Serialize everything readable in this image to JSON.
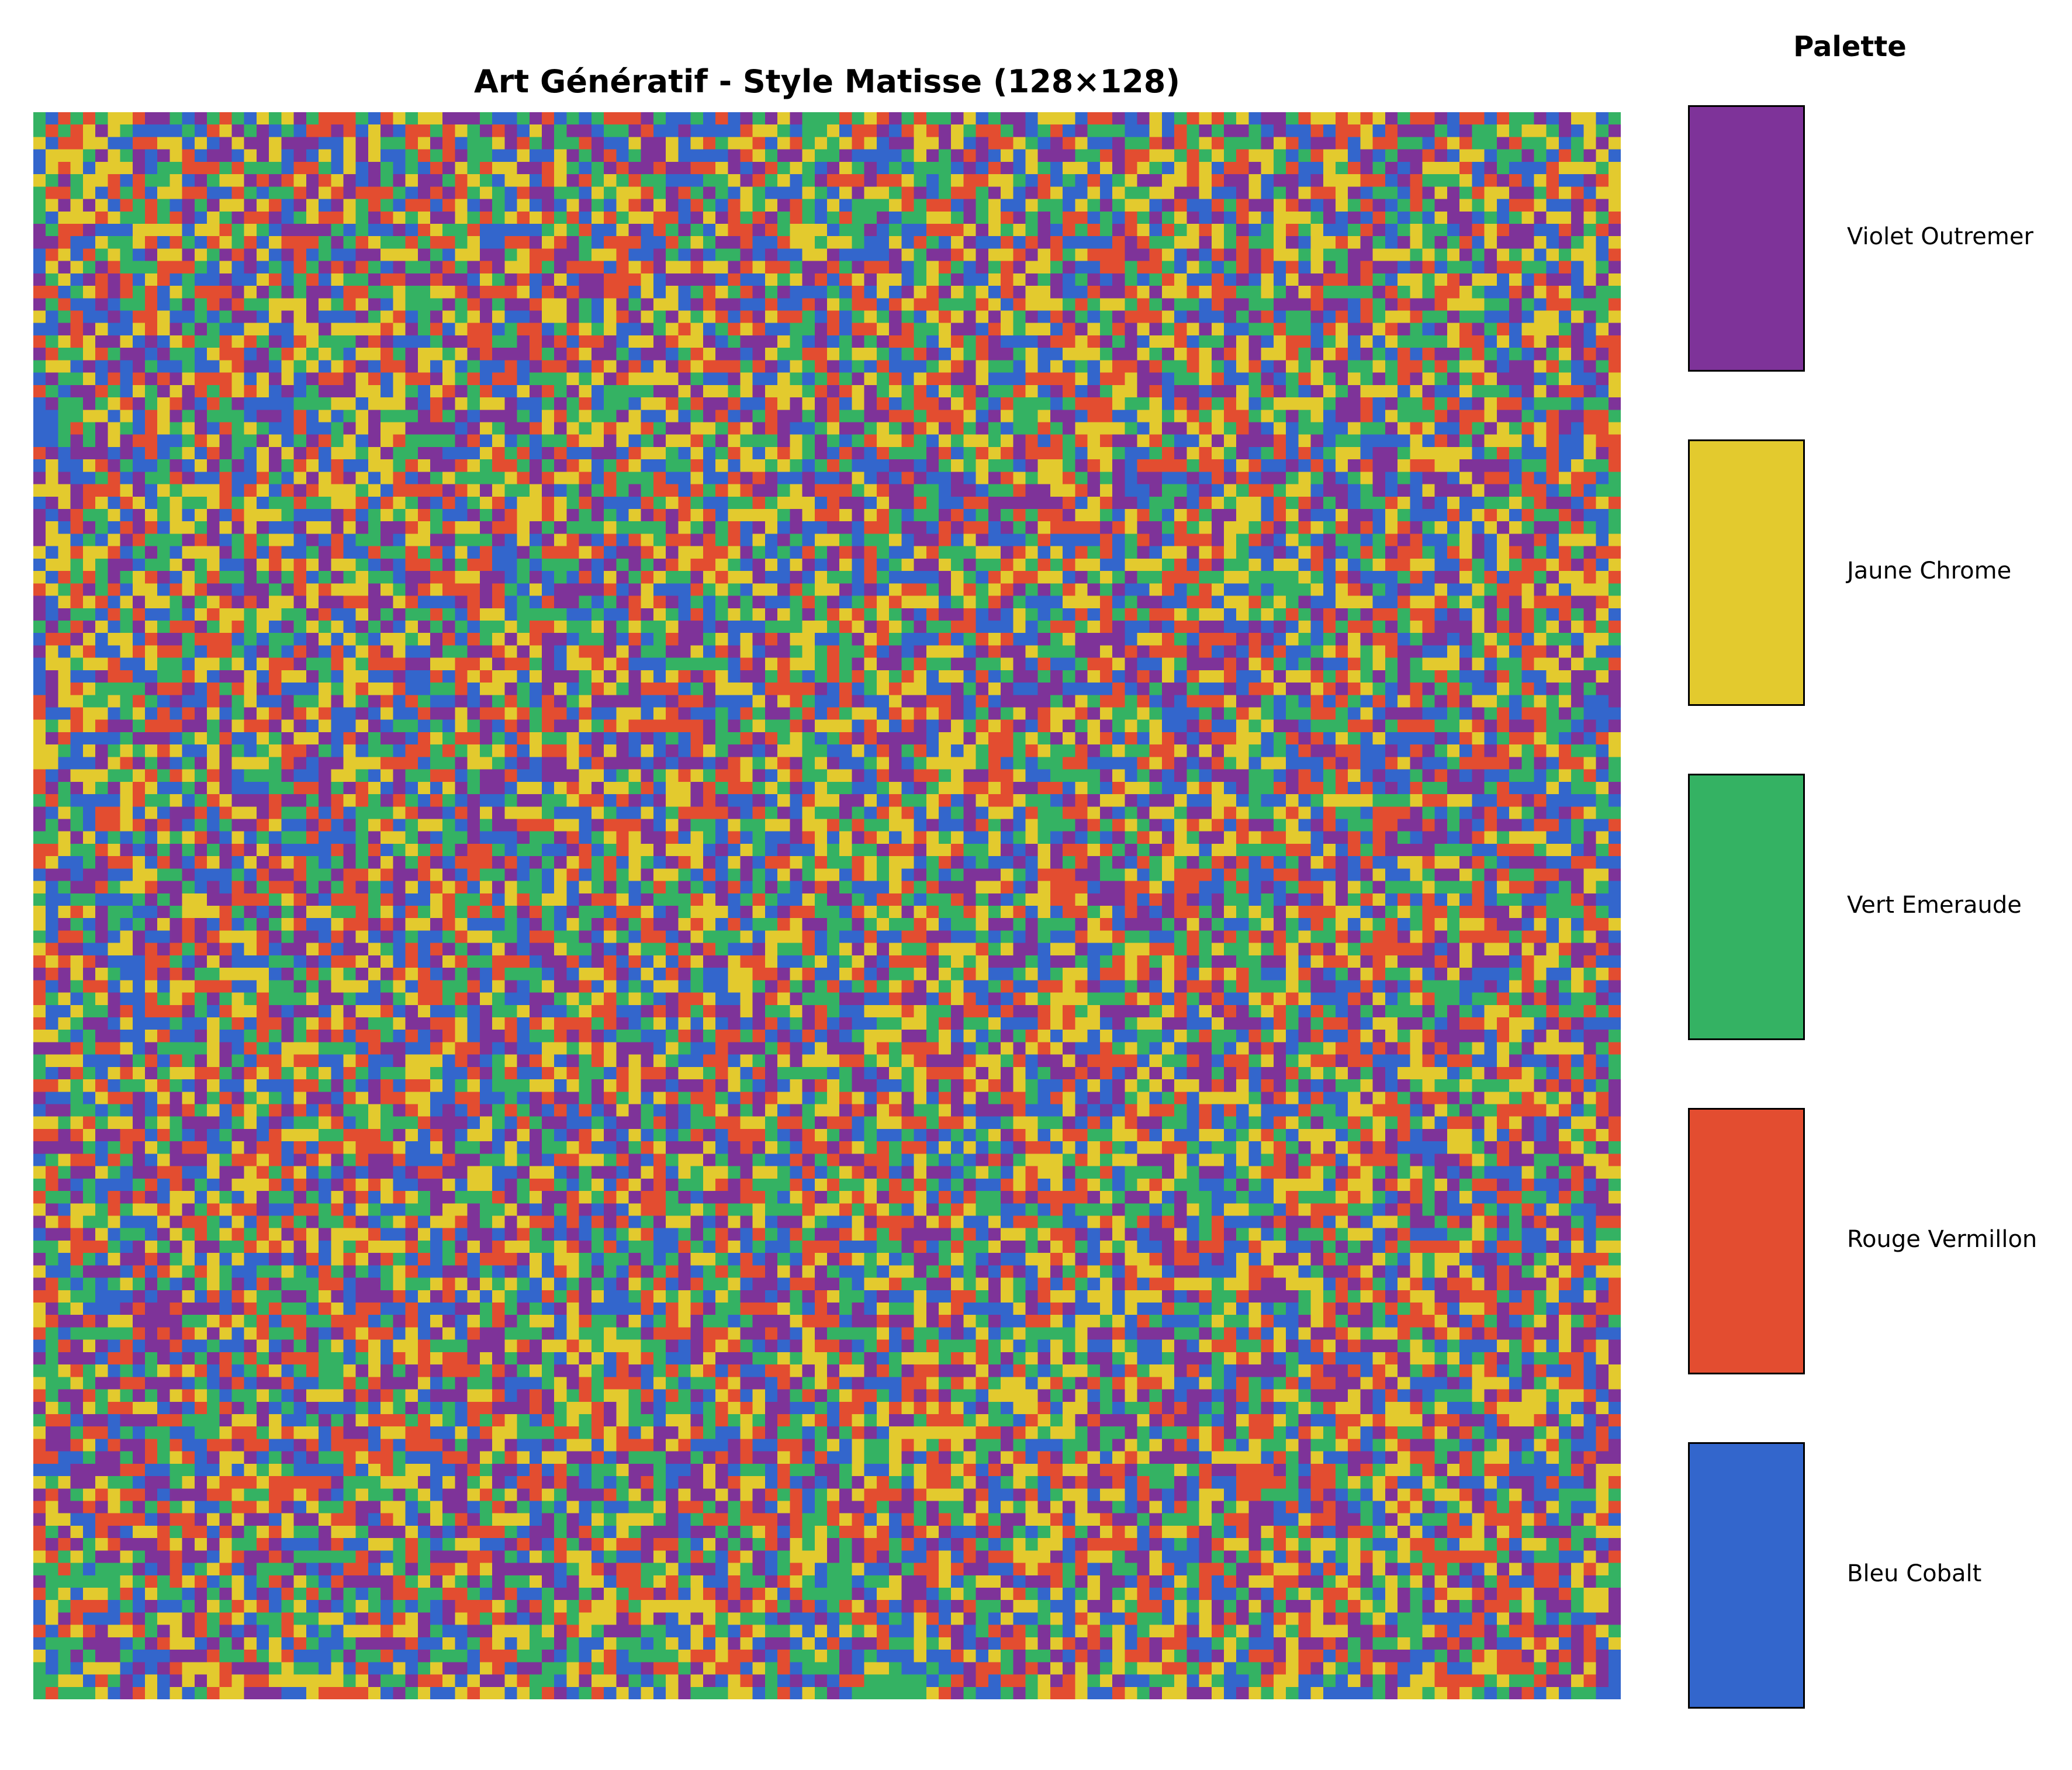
{
  "title": "Art Génératif - Style Matisse (128×128)",
  "artwork": {
    "grid_cells": 128,
    "colors": [
      "#7e3399",
      "#e3ca2e",
      "#34b263",
      "#e34d30",
      "#3366cc"
    ]
  },
  "palette": {
    "title": "Palette",
    "items": [
      {
        "label": "Violet Outremer",
        "color": "#7e3399"
      },
      {
        "label": "Jaune Chrome",
        "color": "#e3ca2e"
      },
      {
        "label": "Vert Emeraude",
        "color": "#34b263"
      },
      {
        "label": "Rouge Vermillon",
        "color": "#e34d30"
      },
      {
        "label": "Bleu Cobalt",
        "color": "#3366cc"
      }
    ]
  }
}
